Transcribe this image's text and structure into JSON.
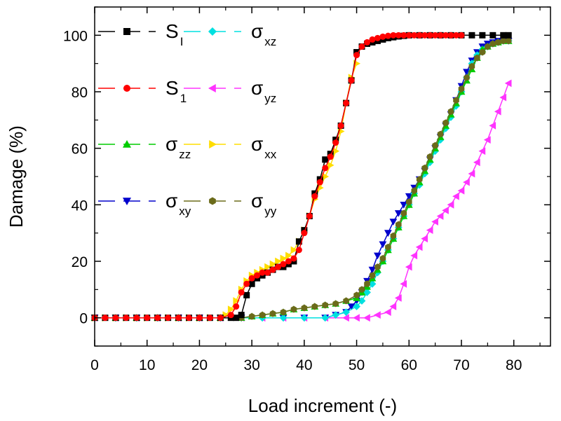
{
  "chart_data": {
    "type": "line",
    "title": "",
    "xlabel": "Load increment (-)",
    "ylabel": "Damage (%)",
    "xlim": [
      0,
      87
    ],
    "ylim": [
      -10,
      110
    ],
    "xticks": [
      0,
      10,
      20,
      30,
      40,
      50,
      60,
      70,
      80
    ],
    "yticks": [
      0,
      20,
      40,
      60,
      80,
      100
    ],
    "grid": false,
    "legend_position": "top-left",
    "series": [
      {
        "name": "S_I",
        "label_main": "S",
        "label_sub": "I",
        "color": "#000000",
        "marker": "square",
        "x": [
          0,
          2,
          4,
          6,
          8,
          10,
          12,
          14,
          16,
          18,
          20,
          22,
          24,
          26,
          27,
          28,
          29,
          30,
          31,
          32,
          33,
          34,
          35,
          36,
          37,
          38,
          39,
          40,
          41,
          42,
          43,
          44,
          45,
          46,
          47,
          48,
          49,
          50,
          51,
          52,
          53,
          54,
          55,
          56,
          57,
          58,
          59,
          60,
          62,
          64,
          66,
          68,
          70,
          72,
          74,
          76,
          78,
          79
        ],
        "values": [
          0,
          0,
          0,
          0,
          0,
          0,
          0,
          0,
          0,
          0,
          0,
          0,
          0,
          0,
          0,
          1,
          8,
          12,
          14,
          15,
          16,
          17,
          18,
          18,
          19,
          20,
          27,
          31,
          36,
          44,
          49,
          56,
          58,
          63,
          68,
          76,
          84,
          94,
          96,
          97,
          97.5,
          98,
          98.5,
          99,
          99.3,
          99.6,
          99.8,
          100,
          100,
          100,
          100,
          100,
          100,
          100,
          100,
          100,
          100,
          100
        ]
      },
      {
        "name": "S_1",
        "label_main": "S",
        "label_sub": "1",
        "color": "#ff0000",
        "marker": "circle",
        "x": [
          0,
          2,
          4,
          6,
          8,
          10,
          12,
          14,
          16,
          18,
          20,
          22,
          24,
          26,
          27,
          28,
          29,
          30,
          31,
          32,
          33,
          34,
          35,
          36,
          37,
          38,
          39,
          40,
          41,
          42,
          43,
          44,
          45,
          46,
          47,
          48,
          49,
          50,
          51,
          52,
          53,
          54,
          55,
          56,
          57,
          58,
          59,
          60,
          61,
          62,
          63,
          64,
          65,
          66,
          67,
          68,
          69,
          70
        ],
        "values": [
          0,
          0,
          0,
          0,
          0,
          0,
          0,
          0,
          0,
          0,
          0,
          0,
          0,
          1,
          4,
          9,
          12,
          14,
          15,
          16,
          16,
          17,
          18,
          19,
          20,
          21,
          24,
          30,
          36,
          43,
          48,
          53,
          57,
          62,
          68,
          76,
          84,
          93,
          96,
          97.5,
          98.5,
          99,
          99.5,
          99.8,
          100,
          100,
          100,
          100,
          100,
          100,
          100,
          100,
          100,
          100,
          100,
          100,
          100,
          100
        ]
      },
      {
        "name": "σ_zz",
        "label_main": "σ",
        "label_sub": "zz",
        "color": "#00cc00",
        "marker": "triangle-up",
        "x": [
          0,
          4,
          8,
          12,
          16,
          20,
          24,
          28,
          30,
          32,
          34,
          36,
          38,
          40,
          42,
          44,
          46,
          48,
          50,
          51,
          52,
          53,
          54,
          55,
          56,
          57,
          58,
          59,
          60,
          61,
          62,
          63,
          64,
          65,
          66,
          67,
          68,
          69,
          70,
          71,
          72,
          73,
          74,
          75,
          76,
          77,
          78,
          79
        ],
        "values": [
          0,
          0,
          0,
          0,
          0,
          0,
          0,
          0,
          0.5,
          1,
          1.5,
          2,
          3,
          3.5,
          4,
          4.5,
          5,
          6,
          7,
          9,
          11,
          14,
          17,
          20,
          24,
          28,
          32,
          36,
          40,
          44,
          48,
          52,
          56,
          60,
          64,
          68,
          72,
          76,
          80,
          84,
          88,
          92,
          95,
          96,
          97,
          97.5,
          98,
          98
        ]
      },
      {
        "name": "σ_xy",
        "label_main": "σ",
        "label_sub": "xy",
        "color": "#0000cc",
        "marker": "triangle-down",
        "x": [
          0,
          4,
          8,
          12,
          16,
          20,
          24,
          28,
          32,
          36,
          40,
          44,
          46,
          48,
          49,
          50,
          51,
          52,
          53,
          54,
          55,
          56,
          57,
          58,
          59,
          60,
          61,
          62,
          63,
          64,
          65,
          66,
          67,
          68,
          69,
          70,
          71,
          72,
          73,
          74,
          75,
          76,
          77,
          78,
          79
        ],
        "values": [
          0,
          0,
          0,
          0,
          0,
          0,
          0,
          0,
          0,
          0,
          0,
          0,
          1,
          2,
          4,
          6,
          9,
          13,
          17,
          22,
          26,
          30,
          34,
          37,
          40,
          43,
          46,
          49,
          52,
          56,
          60,
          64,
          68,
          72,
          77,
          82,
          87,
          91,
          94,
          96,
          97,
          97.5,
          98,
          98,
          98
        ]
      },
      {
        "name": "σ_xz",
        "label_main": "σ",
        "label_sub": "xz",
        "color": "#00e0e0",
        "marker": "diamond",
        "x": [
          0,
          4,
          8,
          12,
          16,
          20,
          24,
          28,
          32,
          36,
          40,
          44,
          46,
          48,
          50,
          51,
          52,
          53,
          54,
          55,
          56,
          57,
          58,
          59,
          60,
          61,
          62,
          63,
          64,
          65,
          66,
          67,
          68,
          69,
          70,
          71,
          72,
          73,
          74,
          75,
          76,
          77,
          78,
          79
        ],
        "values": [
          0,
          0,
          0,
          0,
          0,
          0,
          0,
          0,
          0,
          0,
          0,
          0,
          1,
          2,
          4,
          6,
          9,
          12,
          16,
          20,
          24,
          28,
          32,
          36,
          40,
          44,
          47,
          51,
          55,
          59,
          63,
          67,
          71,
          75,
          80,
          85,
          90,
          93,
          95,
          96,
          97,
          97.5,
          98,
          98
        ]
      },
      {
        "name": "σ_yz",
        "label_main": "σ",
        "label_sub": "yz",
        "color": "#ff33ff",
        "marker": "triangle-left",
        "x": [
          0,
          4,
          8,
          12,
          16,
          20,
          24,
          28,
          32,
          36,
          40,
          44,
          48,
          50,
          52,
          54,
          56,
          57,
          58,
          59,
          60,
          61,
          62,
          63,
          64,
          65,
          66,
          67,
          68,
          69,
          70,
          71,
          72,
          73,
          74,
          75,
          76,
          77,
          78,
          79
        ],
        "values": [
          0,
          0,
          0,
          0,
          0,
          0,
          0,
          0,
          0,
          0,
          0,
          0,
          0,
          0,
          0,
          1,
          2,
          4,
          7,
          12,
          18,
          22,
          25,
          28,
          31,
          34,
          36,
          38,
          40,
          43,
          45,
          48,
          51,
          55,
          59,
          63,
          68,
          73,
          78,
          83
        ]
      },
      {
        "name": "σ_xx",
        "label_main": "σ",
        "label_sub": "xx",
        "color": "#ffdd00",
        "marker": "triangle-right",
        "x": [
          0,
          2,
          4,
          6,
          8,
          10,
          12,
          14,
          16,
          18,
          20,
          22,
          24,
          25,
          26,
          27,
          28,
          29,
          30,
          31,
          32,
          33,
          34,
          35,
          36,
          37,
          38,
          39,
          40,
          41,
          42,
          43,
          44,
          45,
          46,
          47,
          48,
          49,
          50
        ],
        "values": [
          0,
          0,
          0,
          0,
          0,
          0,
          0,
          0,
          0,
          0,
          0,
          0,
          0,
          1,
          3,
          6,
          10,
          13,
          15,
          16,
          17,
          18,
          19,
          20,
          21,
          22,
          24,
          27,
          31,
          36,
          42,
          46,
          50,
          54,
          59,
          66,
          76,
          85,
          90
        ]
      },
      {
        "name": "σ_yy",
        "label_main": "σ",
        "label_sub": "yy",
        "color": "#6b6b1a",
        "marker": "hexagon",
        "x": [
          0,
          4,
          8,
          12,
          16,
          20,
          24,
          28,
          30,
          32,
          34,
          36,
          38,
          40,
          42,
          44,
          46,
          48,
          50,
          51,
          52,
          53,
          54,
          55,
          56,
          57,
          58,
          59,
          60,
          61,
          62,
          63,
          64,
          65,
          66,
          67,
          68,
          69,
          70,
          71,
          72,
          73,
          74,
          75,
          76,
          77,
          78,
          79
        ],
        "values": [
          0,
          0,
          0,
          0,
          0,
          0,
          0,
          0,
          0.5,
          1,
          1.5,
          2,
          3,
          3.5,
          4,
          4.5,
          5,
          6,
          8,
          10,
          12,
          15,
          18,
          21,
          25,
          29,
          33,
          37,
          41,
          45,
          49,
          53,
          57,
          61,
          65,
          69,
          73,
          77,
          81,
          85,
          89,
          92,
          94,
          96,
          97,
          97.5,
          98,
          98
        ]
      }
    ],
    "legend_order": [
      "S_I",
      "σ_xz",
      "S_1",
      "σ_yz",
      "σ_zz",
      "σ_xx",
      "σ_xy",
      "σ_yy"
    ]
  }
}
